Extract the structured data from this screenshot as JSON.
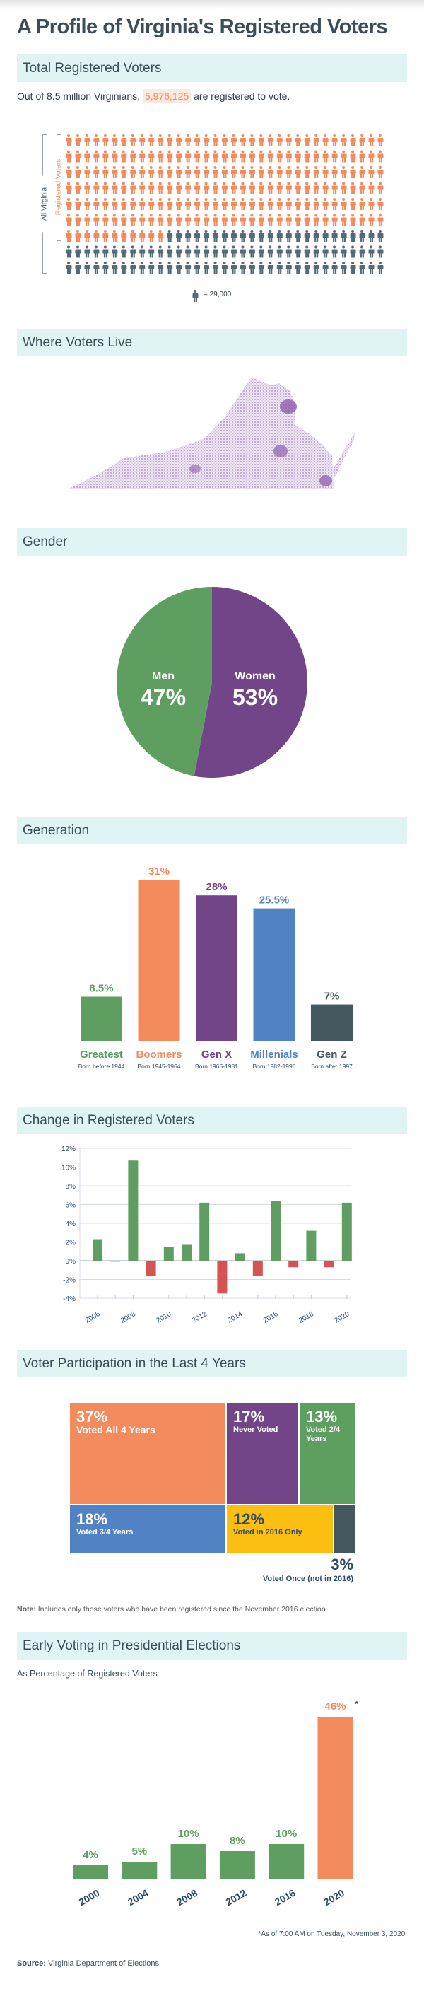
{
  "title": "A Profile of Virginia's Registered Voters",
  "sections": {
    "total": "Total Registered Voters",
    "where": "Where Voters Live",
    "gender": "Gender",
    "generation": "Generation",
    "change": "Change in Registered Voters",
    "participation": "Voter Participation in the Last 4 Years",
    "early": "Early Voting in Presidential Elections"
  },
  "intro": {
    "before": "Out of 8.5 million Virginians,",
    "count": "5,976,125",
    "after": "are registered to vote."
  },
  "icon_array": {
    "all_label": "All Virginia",
    "registered_label": "Registered Voters",
    "legend": "= 29,000",
    "columns": 35,
    "rows": 9,
    "registered_icons": 221,
    "colors": {
      "registered": "#f48b5c",
      "other": "#546a77"
    }
  },
  "colors": {
    "band": "#e0f4f3",
    "green": "#5e9f61",
    "orange": "#f48b5c",
    "purple": "#724488",
    "blue": "#5182c3",
    "slate": "#44575e",
    "red": "#d65353",
    "yellow": "#fcbf11",
    "axis": "#2d4a6b"
  },
  "chart_data": [
    {
      "type": "pie",
      "slices": [
        {
          "label": "Men",
          "value": 47,
          "display": "47%",
          "color": "#5e9f61"
        },
        {
          "label": "Women",
          "value": 53,
          "display": "53%",
          "color": "#724488"
        }
      ]
    },
    {
      "type": "bar",
      "categories": [
        "Greatest",
        "Boomers",
        "Gen X",
        "Millenials",
        "Gen Z"
      ],
      "sublabels": [
        "Born before 1944",
        "Born 1945-1964",
        "Born 1965-1981",
        "Born 1982-1996",
        "Born after 1997"
      ],
      "values": [
        8.5,
        31,
        28,
        25.5,
        7
      ],
      "labels": [
        "8.5%",
        "31%",
        "28%",
        "25.5%",
        "7%"
      ],
      "colors": [
        "#5e9f61",
        "#f48b5c",
        "#724488",
        "#5182c3",
        "#44575e"
      ]
    },
    {
      "type": "bar",
      "x": [
        2006,
        2007,
        2008,
        2009,
        2010,
        2011,
        2012,
        2013,
        2014,
        2015,
        2016,
        2017,
        2018,
        2019,
        2020
      ],
      "values": [
        2.3,
        -0.1,
        10.7,
        -1.6,
        1.5,
        1.7,
        6.2,
        -3.5,
        0.8,
        -1.6,
        6.4,
        -0.7,
        3.2,
        -0.7,
        6.2
      ],
      "ylim": [
        -4,
        12
      ],
      "yticks": [
        "12%",
        "10%",
        "8%",
        "6%",
        "4%",
        "2%",
        "0%",
        "-2%",
        "-4%"
      ],
      "xticks": [
        "2006",
        "2008",
        "2010",
        "2012",
        "2014",
        "2016",
        "2018",
        "2020"
      ],
      "grid": true,
      "colors": {
        "positive": "#5e9f61",
        "negative": "#d65353"
      }
    },
    {
      "type": "treemap",
      "items": [
        {
          "value": "37%",
          "label": "Voted All 4 Years",
          "color": "#f48b5c"
        },
        {
          "value": "17%",
          "label": "Never Voted",
          "color": "#724488"
        },
        {
          "value": "13%",
          "label": "Voted 2/4 Years",
          "color": "#5e9f61"
        },
        {
          "value": "18%",
          "label": "Voted 3/4 Years",
          "color": "#5182c3"
        },
        {
          "value": "12%",
          "label": "Voted in 2016 Only",
          "color": "#fcbf11"
        },
        {
          "value": "3%",
          "label": "Voted Once (not in 2016)",
          "color": "#44575e"
        }
      ]
    },
    {
      "type": "bar",
      "subtitle": "As Percentage of Registered Voters",
      "categories": [
        "2000",
        "2004",
        "2008",
        "2012",
        "2016",
        "2020"
      ],
      "values": [
        4,
        5,
        10,
        8,
        10,
        46
      ],
      "labels": [
        "4%",
        "5%",
        "10%",
        "8%",
        "10%",
        "46%"
      ],
      "marker": "*",
      "colors": [
        "#5e9f61",
        "#5e9f61",
        "#5e9f61",
        "#5e9f61",
        "#5e9f61",
        "#f48b5c"
      ]
    }
  ],
  "note": {
    "label": "Note:",
    "text": "Includes only those voters who have been registered since the November 2016 election."
  },
  "footnote": "*As of 7:00 AM on Tuesday, November 3, 2020.",
  "source": {
    "label": "Source:",
    "text": "Virginia Department of Elections"
  }
}
